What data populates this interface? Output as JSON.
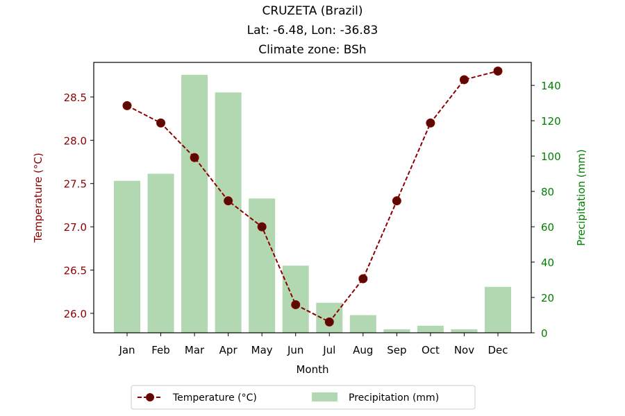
{
  "chart_data": {
    "type": "bar",
    "title": "CRUZETA (Brazil)",
    "subtitle_lines": [
      "Lat: -6.48, Lon: -36.83",
      "Climate zone: BSh"
    ],
    "xlabel": "Month",
    "ylabel_left": "Temperature (°C)",
    "ylabel_right": "Precipitation (mm)",
    "categories": [
      "Jan",
      "Feb",
      "Mar",
      "Apr",
      "May",
      "Jun",
      "Jul",
      "Aug",
      "Sep",
      "Oct",
      "Nov",
      "Dec"
    ],
    "series": [
      {
        "name": "Temperature (°C)",
        "type": "line",
        "axis": "left",
        "color": "#8b0000",
        "values": [
          28.4,
          28.2,
          27.8,
          27.3,
          27.0,
          26.1,
          25.9,
          26.4,
          27.3,
          28.2,
          28.7,
          28.8
        ]
      },
      {
        "name": "Precipitation (mm)",
        "type": "bar",
        "axis": "right",
        "color": "#b2d8b2",
        "values": [
          86,
          90,
          146,
          136,
          76,
          38,
          17,
          10,
          2,
          4,
          2,
          26
        ]
      }
    ],
    "ylim_left": [
      25.775,
      28.9
    ],
    "yticks_left": [
      "26.0",
      "26.5",
      "27.0",
      "27.5",
      "28.0",
      "28.5"
    ],
    "ylim_right": [
      0,
      153
    ],
    "yticks_right": [
      "0",
      "20",
      "40",
      "60",
      "80",
      "100",
      "120",
      "140"
    ],
    "left_axis_color": "#8b0000",
    "right_axis_color": "#008000",
    "grid": false,
    "legend_position": "bottom-center"
  }
}
